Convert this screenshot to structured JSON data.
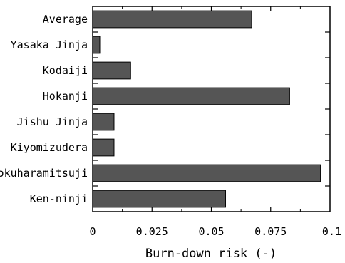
{
  "chart_data": {
    "type": "bar",
    "orientation": "horizontal",
    "categories": [
      "Average",
      "Yasaka Jinja",
      "Kodaiji",
      "Hokanji",
      "Jishu Jinja",
      "Kiyomizudera",
      "Rokuharamitsuji",
      "Ken-ninji"
    ],
    "values": [
      0.067,
      0.003,
      0.016,
      0.083,
      0.009,
      0.009,
      0.096,
      0.056
    ],
    "xlabel": "Burn-down risk (-)",
    "ylabel": "",
    "title": "",
    "xlim": [
      0,
      0.1
    ],
    "xticks": [
      0,
      0.025,
      0.05,
      0.075,
      0.1
    ],
    "xtick_labels": [
      "0",
      "0.025",
      "0.05",
      "0.075",
      "0.1"
    ],
    "grid": false,
    "bar_color": "#555555",
    "bar_edge_color": "#000000"
  }
}
